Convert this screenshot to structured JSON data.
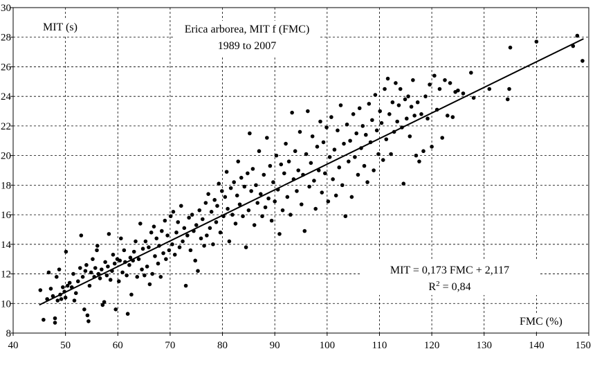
{
  "chart_data": {
    "type": "scatter",
    "title_line1": "Erica arborea,  MIT f (FMC)",
    "title_line2": "1989 to 2007",
    "xlabel": "FMC (%)",
    "ylabel": "MIT (s)",
    "equation_line1": "MIT = 0,173 FMC + 2,117",
    "equation_line2_prefix": "R",
    "equation_line2_sup": "2",
    "equation_line2_suffix": " = 0,84",
    "xlim": [
      40,
      150
    ],
    "ylim": [
      8,
      30
    ],
    "x_ticks": [
      40,
      50,
      60,
      70,
      80,
      90,
      100,
      110,
      120,
      130,
      140,
      150
    ],
    "y_ticks": [
      8,
      10,
      12,
      14,
      16,
      18,
      20,
      22,
      24,
      26,
      28,
      30
    ],
    "grid": true,
    "trendline": {
      "slope": 0.173,
      "intercept": 2.117,
      "x_range": [
        45,
        149
      ]
    },
    "points": [
      [
        45.2,
        10.9
      ],
      [
        45.8,
        8.9
      ],
      [
        46.5,
        10.3
      ],
      [
        46.8,
        12.1
      ],
      [
        47.2,
        11.0
      ],
      [
        47.6,
        10.5
      ],
      [
        48.0,
        8.7
      ],
      [
        48.0,
        9.0
      ],
      [
        48.3,
        11.8
      ],
      [
        48.5,
        10.2
      ],
      [
        48.8,
        12.3
      ],
      [
        49.0,
        10.6
      ],
      [
        49.2,
        10.3
      ],
      [
        49.5,
        11.1
      ],
      [
        49.8,
        10.8
      ],
      [
        50.0,
        10.4
      ],
      [
        50.1,
        13.5
      ],
      [
        50.4,
        11.2
      ],
      [
        50.8,
        11.4
      ],
      [
        51.2,
        11.1
      ],
      [
        51.5,
        12.0
      ],
      [
        51.7,
        10.2
      ],
      [
        52.0,
        10.7
      ],
      [
        52.4,
        11.5
      ],
      [
        52.8,
        12.4
      ],
      [
        53.0,
        14.6
      ],
      [
        53.3,
        11.8
      ],
      [
        53.6,
        9.6
      ],
      [
        53.8,
        12.2
      ],
      [
        54.0,
        12.6
      ],
      [
        54.2,
        9.2
      ],
      [
        54.4,
        8.8
      ],
      [
        54.6,
        11.2
      ],
      [
        54.9,
        12.1
      ],
      [
        55.2,
        13.0
      ],
      [
        55.5,
        11.8
      ],
      [
        55.7,
        12.4
      ],
      [
        56.0,
        13.6
      ],
      [
        56.1,
        13.9
      ],
      [
        56.3,
        12.0
      ],
      [
        56.6,
        11.7
      ],
      [
        56.9,
        12.3
      ],
      [
        57.1,
        9.9
      ],
      [
        57.4,
        10.1
      ],
      [
        57.6,
        12.8
      ],
      [
        57.9,
        11.9
      ],
      [
        58.1,
        12.5
      ],
      [
        58.3,
        14.7
      ],
      [
        58.6,
        11.6
      ],
      [
        58.9,
        12.2
      ],
      [
        59.1,
        13.3
      ],
      [
        59.4,
        12.7
      ],
      [
        59.6,
        9.6
      ],
      [
        59.9,
        13.0
      ],
      [
        60.2,
        11.5
      ],
      [
        60.4,
        12.9
      ],
      [
        60.6,
        14.4
      ],
      [
        60.9,
        12.1
      ],
      [
        61.2,
        13.6
      ],
      [
        61.4,
        12.8
      ],
      [
        61.7,
        11.9
      ],
      [
        61.9,
        9.3
      ],
      [
        62.2,
        12.6
      ],
      [
        62.4,
        13.1
      ],
      [
        62.6,
        10.6
      ],
      [
        62.9,
        12.9
      ],
      [
        63.1,
        13.5
      ],
      [
        63.4,
        14.2
      ],
      [
        63.7,
        11.8
      ],
      [
        64.0,
        13.0
      ],
      [
        64.3,
        15.4
      ],
      [
        64.6,
        12.3
      ],
      [
        64.8,
        13.7
      ],
      [
        65.1,
        11.9
      ],
      [
        65.3,
        14.2
      ],
      [
        65.6,
        12.5
      ],
      [
        65.9,
        13.8
      ],
      [
        66.1,
        11.3
      ],
      [
        66.4,
        14.8
      ],
      [
        66.6,
        12.0
      ],
      [
        66.9,
        15.2
      ],
      [
        67.1,
        13.2
      ],
      [
        67.4,
        14.4
      ],
      [
        67.7,
        12.7
      ],
      [
        67.9,
        13.9
      ],
      [
        68.2,
        11.8
      ],
      [
        68.4,
        14.9
      ],
      [
        68.7,
        13.4
      ],
      [
        69.0,
        15.6
      ],
      [
        69.2,
        13.0
      ],
      [
        69.5,
        14.6
      ],
      [
        69.8,
        13.6
      ],
      [
        70.1,
        15.9
      ],
      [
        70.4,
        14.0
      ],
      [
        70.6,
        16.2
      ],
      [
        70.9,
        13.3
      ],
      [
        71.2,
        14.8
      ],
      [
        71.5,
        15.5
      ],
      [
        71.8,
        13.8
      ],
      [
        72.1,
        16.6
      ],
      [
        72.4,
        14.2
      ],
      [
        72.7,
        15.1
      ],
      [
        73.0,
        11.2
      ],
      [
        73.3,
        14.6
      ],
      [
        73.6,
        15.8
      ],
      [
        73.9,
        13.6
      ],
      [
        74.2,
        16.0
      ],
      [
        74.5,
        14.9
      ],
      [
        74.8,
        12.9
      ],
      [
        75.0,
        15.3
      ],
      [
        75.3,
        12.2
      ],
      [
        75.6,
        16.3
      ],
      [
        75.9,
        14.4
      ],
      [
        76.2,
        15.7
      ],
      [
        76.5,
        13.9
      ],
      [
        76.8,
        16.8
      ],
      [
        77.0,
        14.6
      ],
      [
        77.3,
        17.4
      ],
      [
        77.6,
        15.1
      ],
      [
        77.9,
        16.2
      ],
      [
        78.2,
        14.0
      ],
      [
        78.5,
        17.0
      ],
      [
        78.8,
        15.5
      ],
      [
        79.0,
        16.6
      ],
      [
        79.3,
        18.1
      ],
      [
        79.6,
        14.8
      ],
      [
        79.9,
        17.6
      ],
      [
        80.2,
        15.9
      ],
      [
        80.5,
        17.2
      ],
      [
        80.8,
        18.9
      ],
      [
        81.0,
        16.4
      ],
      [
        81.3,
        14.2
      ],
      [
        81.6,
        17.8
      ],
      [
        81.9,
        16.0
      ],
      [
        82.2,
        18.2
      ],
      [
        82.5,
        15.4
      ],
      [
        82.8,
        17.3
      ],
      [
        83.0,
        19.6
      ],
      [
        83.3,
        16.7
      ],
      [
        83.6,
        18.5
      ],
      [
        83.9,
        15.9
      ],
      [
        84.2,
        17.9
      ],
      [
        84.5,
        13.8
      ],
      [
        84.8,
        18.8
      ],
      [
        85.0,
        16.3
      ],
      [
        85.2,
        21.5
      ],
      [
        85.5,
        17.6
      ],
      [
        85.8,
        19.1
      ],
      [
        86.1,
        15.3
      ],
      [
        86.4,
        18.0
      ],
      [
        86.7,
        16.8
      ],
      [
        87.0,
        20.3
      ],
      [
        87.3,
        17.4
      ],
      [
        87.6,
        15.9
      ],
      [
        87.9,
        18.7
      ],
      [
        88.2,
        16.5
      ],
      [
        88.5,
        21.2
      ],
      [
        88.8,
        17.1
      ],
      [
        89.1,
        19.3
      ],
      [
        89.4,
        15.6
      ],
      [
        89.7,
        18.2
      ],
      [
        90.0,
        16.9
      ],
      [
        90.3,
        20.0
      ],
      [
        90.6,
        17.7
      ],
      [
        90.9,
        14.7
      ],
      [
        91.2,
        19.4
      ],
      [
        91.5,
        16.3
      ],
      [
        91.8,
        18.8
      ],
      [
        92.1,
        20.8
      ],
      [
        92.4,
        17.2
      ],
      [
        92.7,
        19.6
      ],
      [
        93.0,
        16.0
      ],
      [
        93.3,
        22.9
      ],
      [
        93.6,
        18.4
      ],
      [
        93.9,
        20.3
      ],
      [
        94.2,
        17.6
      ],
      [
        94.5,
        19.0
      ],
      [
        94.8,
        21.6
      ],
      [
        95.1,
        16.7
      ],
      [
        95.4,
        18.7
      ],
      [
        95.7,
        14.9
      ],
      [
        96.0,
        20.1
      ],
      [
        96.3,
        23.0
      ],
      [
        96.6,
        17.9
      ],
      [
        96.9,
        19.5
      ],
      [
        97.2,
        21.3
      ],
      [
        97.5,
        18.3
      ],
      [
        97.8,
        16.4
      ],
      [
        98.1,
        20.6
      ],
      [
        98.4,
        19.0
      ],
      [
        98.7,
        22.3
      ],
      [
        99.0,
        17.5
      ],
      [
        99.3,
        20.9
      ],
      [
        99.6,
        18.8
      ],
      [
        99.9,
        21.9
      ],
      [
        100.2,
        16.9
      ],
      [
        100.5,
        19.9
      ],
      [
        100.8,
        22.6
      ],
      [
        101.1,
        18.4
      ],
      [
        101.4,
        20.4
      ],
      [
        101.7,
        17.3
      ],
      [
        102.0,
        21.7
      ],
      [
        102.3,
        19.2
      ],
      [
        102.6,
        23.4
      ],
      [
        102.9,
        18.0
      ],
      [
        103.2,
        20.8
      ],
      [
        103.5,
        15.9
      ],
      [
        103.8,
        22.1
      ],
      [
        104.1,
        19.6
      ],
      [
        104.4,
        21.0
      ],
      [
        104.7,
        17.2
      ],
      [
        105.0,
        22.8
      ],
      [
        105.3,
        19.9
      ],
      [
        105.6,
        21.5
      ],
      [
        105.9,
        18.7
      ],
      [
        106.2,
        23.2
      ],
      [
        106.5,
        20.5
      ],
      [
        106.8,
        22.0
      ],
      [
        107.1,
        19.3
      ],
      [
        107.4,
        21.4
      ],
      [
        107.7,
        18.2
      ],
      [
        108.0,
        23.5
      ],
      [
        108.3,
        20.9
      ],
      [
        108.6,
        22.4
      ],
      [
        108.9,
        19.0
      ],
      [
        109.2,
        24.1
      ],
      [
        109.5,
        21.7
      ],
      [
        109.8,
        20.1
      ],
      [
        110.1,
        23.0
      ],
      [
        110.4,
        22.2
      ],
      [
        110.7,
        19.7
      ],
      [
        111.0,
        24.5
      ],
      [
        111.3,
        21.1
      ],
      [
        111.6,
        25.2
      ],
      [
        111.9,
        22.8
      ],
      [
        112.2,
        20.1
      ],
      [
        112.5,
        23.6
      ],
      [
        112.8,
        21.6
      ],
      [
        113.1,
        24.9
      ],
      [
        113.4,
        22.3
      ],
      [
        113.7,
        23.4
      ],
      [
        114.0,
        24.5
      ],
      [
        114.3,
        21.9
      ],
      [
        114.6,
        18.1
      ],
      [
        114.9,
        23.8
      ],
      [
        115.2,
        22.5
      ],
      [
        115.5,
        24.0
      ],
      [
        115.8,
        21.3
      ],
      [
        116.1,
        23.3
      ],
      [
        116.4,
        25.1
      ],
      [
        116.7,
        22.7
      ],
      [
        117.0,
        20.0
      ],
      [
        117.3,
        23.6
      ],
      [
        117.6,
        19.6
      ],
      [
        118.0,
        22.8
      ],
      [
        118.4,
        20.3
      ],
      [
        118.8,
        24.0
      ],
      [
        119.2,
        22.5
      ],
      [
        119.6,
        24.8
      ],
      [
        120.0,
        20.6
      ],
      [
        120.5,
        25.4
      ],
      [
        121.0,
        23.1
      ],
      [
        121.5,
        24.5
      ],
      [
        122.0,
        21.2
      ],
      [
        122.5,
        25.1
      ],
      [
        123.0,
        22.7
      ],
      [
        123.5,
        24.9
      ],
      [
        124.0,
        22.6
      ],
      [
        124.5,
        24.3
      ],
      [
        125.0,
        24.4
      ],
      [
        126.0,
        24.2
      ],
      [
        127.5,
        25.6
      ],
      [
        128.0,
        23.9
      ],
      [
        131.0,
        24.5
      ],
      [
        134.5,
        23.8
      ],
      [
        134.8,
        24.5
      ],
      [
        135.0,
        27.3
      ],
      [
        140.0,
        27.7
      ],
      [
        147.0,
        27.4
      ],
      [
        147.8,
        28.1
      ],
      [
        148.8,
        26.4
      ]
    ]
  }
}
